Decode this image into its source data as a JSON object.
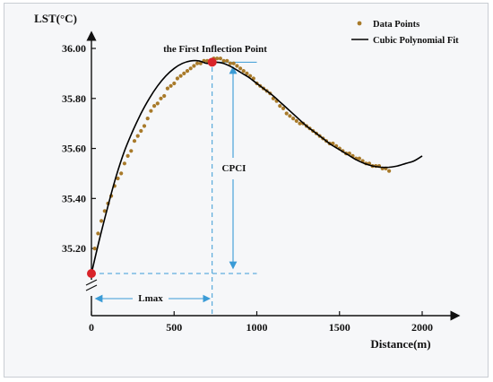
{
  "chart_data": {
    "type": "scatter",
    "title": "",
    "xlabel": "Distance(m)",
    "ylabel": "LST(°C)",
    "xlim": [
      0,
      2100
    ],
    "ylim": [
      35.04,
      36.06
    ],
    "x_ticks": [
      "0",
      "500",
      "1000",
      "1500",
      "2000"
    ],
    "y_ticks": [
      "35.20",
      "35.40",
      "35.60",
      "35.80",
      "36.00"
    ],
    "axis_break": true,
    "legend_position": "top-right",
    "legend": [
      "Data Points",
      "Cubic Polynomial Fit"
    ],
    "series": [
      {
        "name": "Data Points",
        "kind": "scatter",
        "color": "#a87a2a",
        "x": [
          20,
          40,
          60,
          80,
          100,
          120,
          140,
          160,
          180,
          200,
          220,
          240,
          260,
          280,
          300,
          320,
          340,
          360,
          380,
          400,
          420,
          440,
          460,
          480,
          500,
          520,
          540,
          560,
          580,
          600,
          620,
          640,
          660,
          680,
          700,
          720,
          740,
          760,
          780,
          800,
          820,
          840,
          860,
          880,
          900,
          920,
          940,
          960,
          980,
          1000,
          1020,
          1040,
          1060,
          1080,
          1100,
          1120,
          1140,
          1160,
          1180,
          1200,
          1220,
          1240,
          1260,
          1280,
          1300,
          1320,
          1340,
          1360,
          1380,
          1400,
          1420,
          1440,
          1460,
          1480,
          1500,
          1520,
          1540,
          1560,
          1580,
          1600,
          1620,
          1640,
          1660,
          1680,
          1700,
          1720,
          1740,
          1760,
          1780,
          1800
        ],
        "y": [
          35.2,
          35.26,
          35.31,
          35.35,
          35.38,
          35.41,
          35.45,
          35.48,
          35.5,
          35.54,
          35.57,
          35.59,
          35.63,
          35.65,
          35.67,
          35.69,
          35.72,
          35.75,
          35.77,
          35.78,
          35.8,
          35.81,
          35.84,
          35.85,
          35.86,
          35.88,
          35.89,
          35.9,
          35.91,
          35.92,
          35.93,
          35.94,
          35.94,
          35.95,
          35.95,
          35.95,
          35.96,
          35.96,
          35.96,
          35.95,
          35.95,
          35.94,
          35.94,
          35.93,
          35.92,
          35.91,
          35.9,
          35.89,
          35.88,
          35.86,
          35.85,
          35.84,
          35.83,
          35.82,
          35.8,
          35.79,
          35.77,
          35.76,
          35.74,
          35.73,
          35.72,
          35.71,
          35.7,
          35.7,
          35.69,
          35.68,
          35.67,
          35.66,
          35.65,
          35.64,
          35.63,
          35.62,
          35.62,
          35.61,
          35.6,
          35.59,
          35.58,
          35.58,
          35.57,
          35.56,
          35.56,
          35.55,
          35.54,
          35.54,
          35.53,
          35.53,
          35.53,
          35.52,
          35.52,
          35.51
        ]
      },
      {
        "name": "Cubic Polynomial Fit",
        "kind": "line",
        "color": "#000000",
        "x": [
          0,
          50,
          100,
          150,
          200,
          250,
          300,
          350,
          400,
          450,
          500,
          550,
          600,
          650,
          700,
          750,
          800,
          850,
          900,
          950,
          1000,
          1050,
          1100,
          1150,
          1200,
          1250,
          1300,
          1350,
          1400,
          1450,
          1500,
          1550,
          1600,
          1650,
          1700,
          1750,
          1800,
          1850,
          1900,
          1950,
          2000
        ],
        "y": [
          35.1,
          35.24,
          35.37,
          35.49,
          35.59,
          35.67,
          35.74,
          35.8,
          35.85,
          35.89,
          35.92,
          35.94,
          35.95,
          35.95,
          35.94,
          35.945,
          35.94,
          35.925,
          35.905,
          35.885,
          35.86,
          35.835,
          35.81,
          35.78,
          35.75,
          35.72,
          35.69,
          35.665,
          35.64,
          35.615,
          35.595,
          35.575,
          35.555,
          35.54,
          35.53,
          35.525,
          35.525,
          35.53,
          35.54,
          35.55,
          35.57
        ]
      }
    ],
    "annotations": {
      "inflection_label": "the First Inflection Point",
      "inflection_point": {
        "x": 730,
        "y": 35.945
      },
      "start_point": {
        "x": 0,
        "y": 35.1
      },
      "cpci_label": "CPCI",
      "lmax_label": "Lmax",
      "reference_line_color": "#3a9bd6",
      "marker_color": "#d9242a"
    }
  }
}
